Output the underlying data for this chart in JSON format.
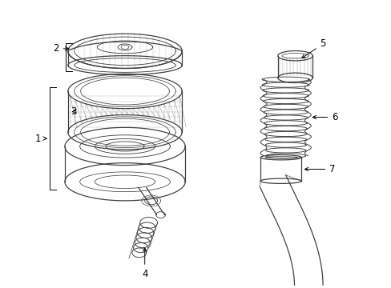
{
  "background_color": "#ffffff",
  "line_color": "#404040",
  "figsize": [
    4.89,
    3.6
  ],
  "dpi": 100
}
